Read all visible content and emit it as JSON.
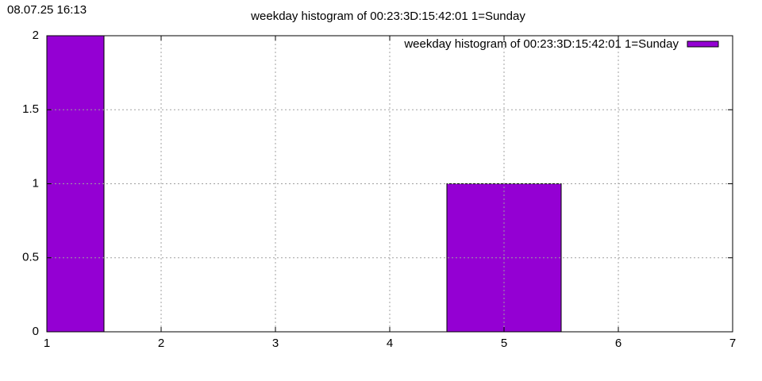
{
  "chart_data": {
    "type": "bar",
    "timestamp": "08.07.25 16:13",
    "title": "weekday histogram of 00:23:3D:15:42:01 1=Sunday",
    "x": [
      1,
      5
    ],
    "series": [
      {
        "name": "weekday histogram of 00:23:3D:15:42:01 1=Sunday",
        "color": "#9400d3",
        "values": [
          2,
          1
        ]
      }
    ],
    "xlim": [
      1,
      7
    ],
    "xticks": [
      1,
      2,
      3,
      4,
      5,
      6,
      7
    ],
    "ylim": [
      0,
      2
    ],
    "yticks": [
      0,
      0.5,
      1,
      1.5,
      2
    ],
    "grid": true,
    "legend": "top-right"
  }
}
